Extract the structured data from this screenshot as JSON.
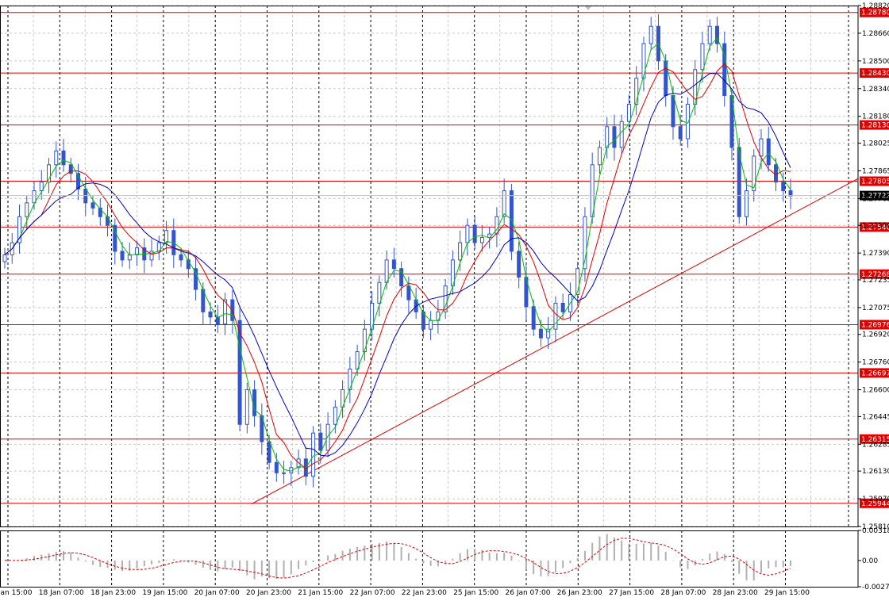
{
  "chart_data": {
    "type": "candlestick",
    "title": "",
    "xlabel": "",
    "ylabel": "",
    "x_tick_labels": [
      "18 Jan 15:00",
      "18 Jan 07:00",
      "18 Jan 23:00",
      "19 Jan 15:00",
      "20 Jan 07:00",
      "20 Jan 23:00",
      "21 Jan 15:00",
      "22 Jan 07:00",
      "22 Jan 23:00",
      "25 Jan 15:00",
      "26 Jan 07:00",
      "26 Jan 23:00",
      "27 Jan 15:00",
      "28 Jan 07:00",
      "28 Jan 23:00",
      "29 Jan 15:00"
    ],
    "y_tick_labels": [
      "1.28820",
      "1.28660",
      "1.28500",
      "1.28340",
      "1.28180",
      "1.28025",
      "1.27865",
      "1.27705",
      "1.27550",
      "1.27390",
      "1.27235",
      "1.27075",
      "1.26920",
      "1.26760",
      "1.26600",
      "1.26445",
      "1.26285",
      "1.26130",
      "1.25970",
      "1.25810"
    ],
    "ylim": [
      1.2581,
      1.2882
    ],
    "current_price": "1.27722",
    "support_resistance_levels": [
      "1.28780",
      "1.28430",
      "1.28130",
      "1.27805",
      "1.27540",
      "1.27268",
      "1.26976",
      "1.26697",
      "1.26315",
      "1.25944"
    ],
    "trendline": {
      "from": [
        20.0,
        1.2594
      ],
      "to": [
        30.3,
        1.2782
      ]
    },
    "close_series": [
      1.2738,
      1.2745,
      1.276,
      1.2768,
      1.2775,
      1.278,
      1.279,
      1.2798,
      1.279,
      1.2785,
      1.2776,
      1.2768,
      1.2765,
      1.276,
      1.2755,
      1.274,
      1.2735,
      1.2738,
      1.2742,
      1.2735,
      1.274,
      1.2745,
      1.2752,
      1.2738,
      1.2735,
      1.273,
      1.2718,
      1.2705,
      1.2702,
      1.2698,
      1.2712,
      1.27,
      1.264,
      1.266,
      1.2645,
      1.263,
      1.2618,
      1.2612,
      1.2612,
      1.2615,
      1.262,
      1.261,
      1.2635,
      1.2625,
      1.264,
      1.265,
      1.266,
      1.2672,
      1.2682,
      1.2695,
      1.271,
      1.2722,
      1.2735,
      1.273,
      1.272,
      1.2712,
      1.2705,
      1.2695,
      1.27,
      1.2705,
      1.272,
      1.2735,
      1.2745,
      1.2755,
      1.2745,
      1.2748,
      1.275,
      1.276,
      1.2775,
      1.274,
      1.2725,
      1.2708,
      1.2695,
      1.269,
      1.2695,
      1.271,
      1.2705,
      1.2715,
      1.273,
      1.276,
      1.279,
      1.28,
      1.2812,
      1.28,
      1.2815,
      1.2825,
      1.284,
      1.286,
      1.287,
      1.285,
      1.283,
      1.2812,
      1.2805,
      1.2825,
      1.2845,
      1.286,
      1.287,
      1.286,
      1.283,
      1.28,
      1.276,
      1.2775,
      1.2795,
      1.2805,
      1.279,
      1.278,
      1.2775,
      1.2772
    ],
    "ma_series_colors": {
      "fast": "#00c000",
      "medium": "#e00000",
      "slow": "#0000c0",
      "candles": "#3355cc"
    },
    "oscillator": {
      "ylim": [
        -0.00277,
        0.00318
      ],
      "y_tick_labels": [
        "0.00318",
        "0.00",
        "-0.00277"
      ]
    }
  }
}
